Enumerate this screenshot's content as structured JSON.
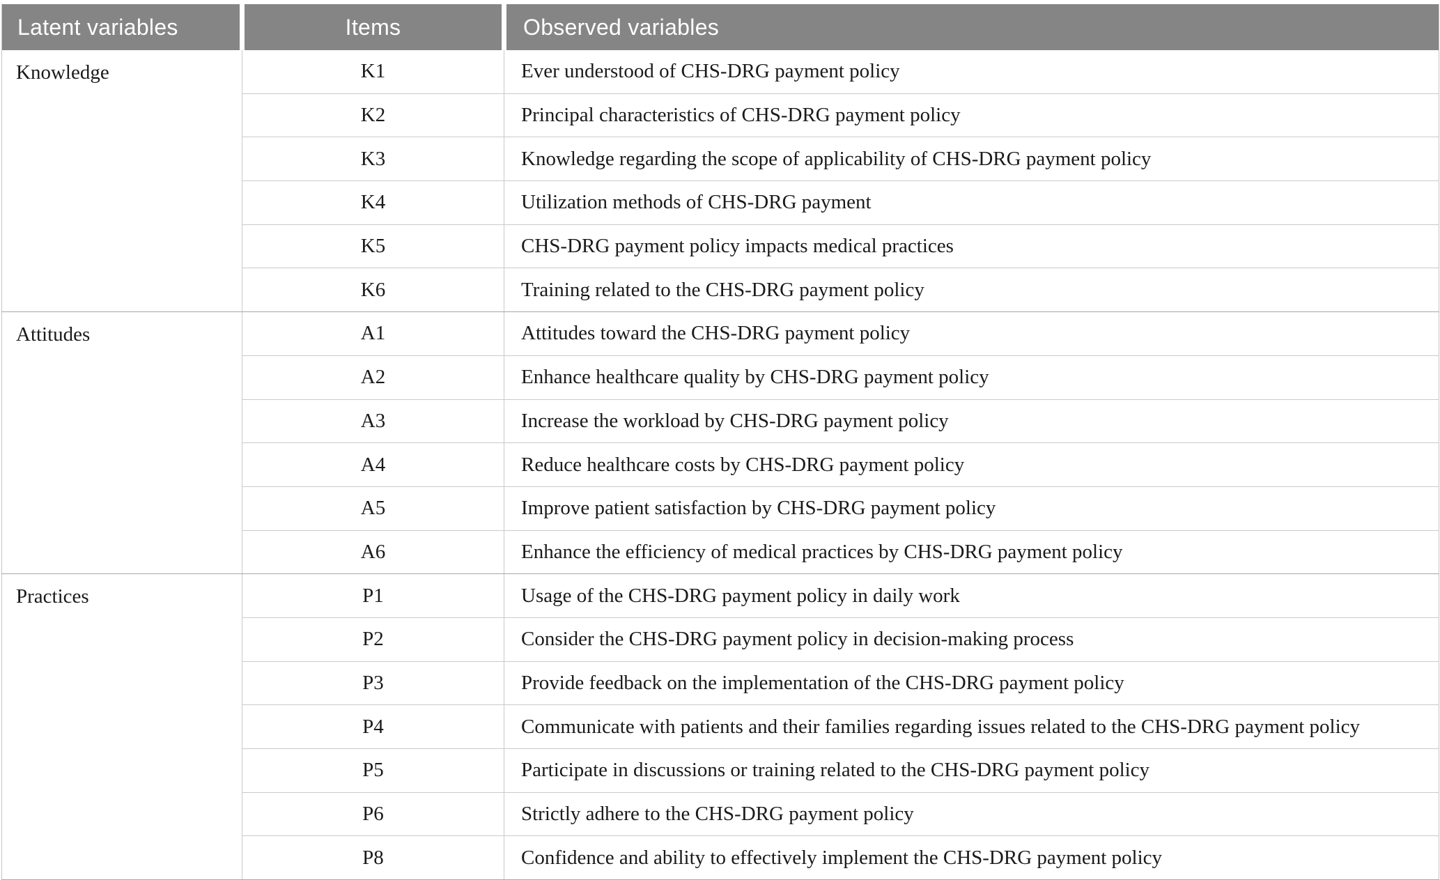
{
  "table": {
    "columns": [
      {
        "label": "Latent variables"
      },
      {
        "label": "Items"
      },
      {
        "label": "Observed variables"
      }
    ],
    "groups": [
      {
        "label": "Knowledge",
        "rows": [
          {
            "item": "K1",
            "observed": "Ever understood of CHS-DRG payment policy"
          },
          {
            "item": "K2",
            "observed": "Principal characteristics of CHS-DRG payment policy"
          },
          {
            "item": "K3",
            "observed": "Knowledge regarding the scope of applicability of CHS-DRG payment policy"
          },
          {
            "item": "K4",
            "observed": "Utilization methods of CHS-DRG payment"
          },
          {
            "item": "K5",
            "observed": "CHS-DRG payment policy impacts medical practices"
          },
          {
            "item": "K6",
            "observed": "Training related to the CHS-DRG payment policy"
          }
        ]
      },
      {
        "label": "Attitudes",
        "rows": [
          {
            "item": "A1",
            "observed": "Attitudes toward the CHS-DRG payment policy"
          },
          {
            "item": "A2",
            "observed": "Enhance healthcare quality by CHS-DRG payment policy"
          },
          {
            "item": "A3",
            "observed": "Increase the workload by CHS-DRG payment policy"
          },
          {
            "item": "A4",
            "observed": "Reduce healthcare costs by CHS-DRG payment policy"
          },
          {
            "item": "A5",
            "observed": "Improve patient satisfaction by CHS-DRG payment policy"
          },
          {
            "item": "A6",
            "observed": "Enhance the efficiency of medical practices by CHS-DRG payment policy"
          }
        ]
      },
      {
        "label": "Practices",
        "rows": [
          {
            "item": "P1",
            "observed": "Usage of the CHS-DRG payment policy in daily work"
          },
          {
            "item": "P2",
            "observed": "Consider the CHS-DRG payment policy in decision-making process"
          },
          {
            "item": "P3",
            "observed": "Provide feedback on the implementation of the CHS-DRG payment policy"
          },
          {
            "item": "P4",
            "observed": "Communicate with patients and their families regarding issues related to the CHS-DRG payment policy"
          },
          {
            "item": "P5",
            "observed": "Participate in discussions or training related to the CHS-DRG payment policy"
          },
          {
            "item": "P6",
            "observed": "Strictly adhere to the CHS-DRG payment policy"
          },
          {
            "item": "P8",
            "observed": "Confidence and ability to effectively implement the CHS-DRG payment policy"
          }
        ]
      }
    ],
    "colors": {
      "header_background": "#858585",
      "header_text": "#ffffff",
      "body_text": "#1a1a1a",
      "row_rule": "#cacaca",
      "group_rule": "#a6a6a6"
    }
  }
}
